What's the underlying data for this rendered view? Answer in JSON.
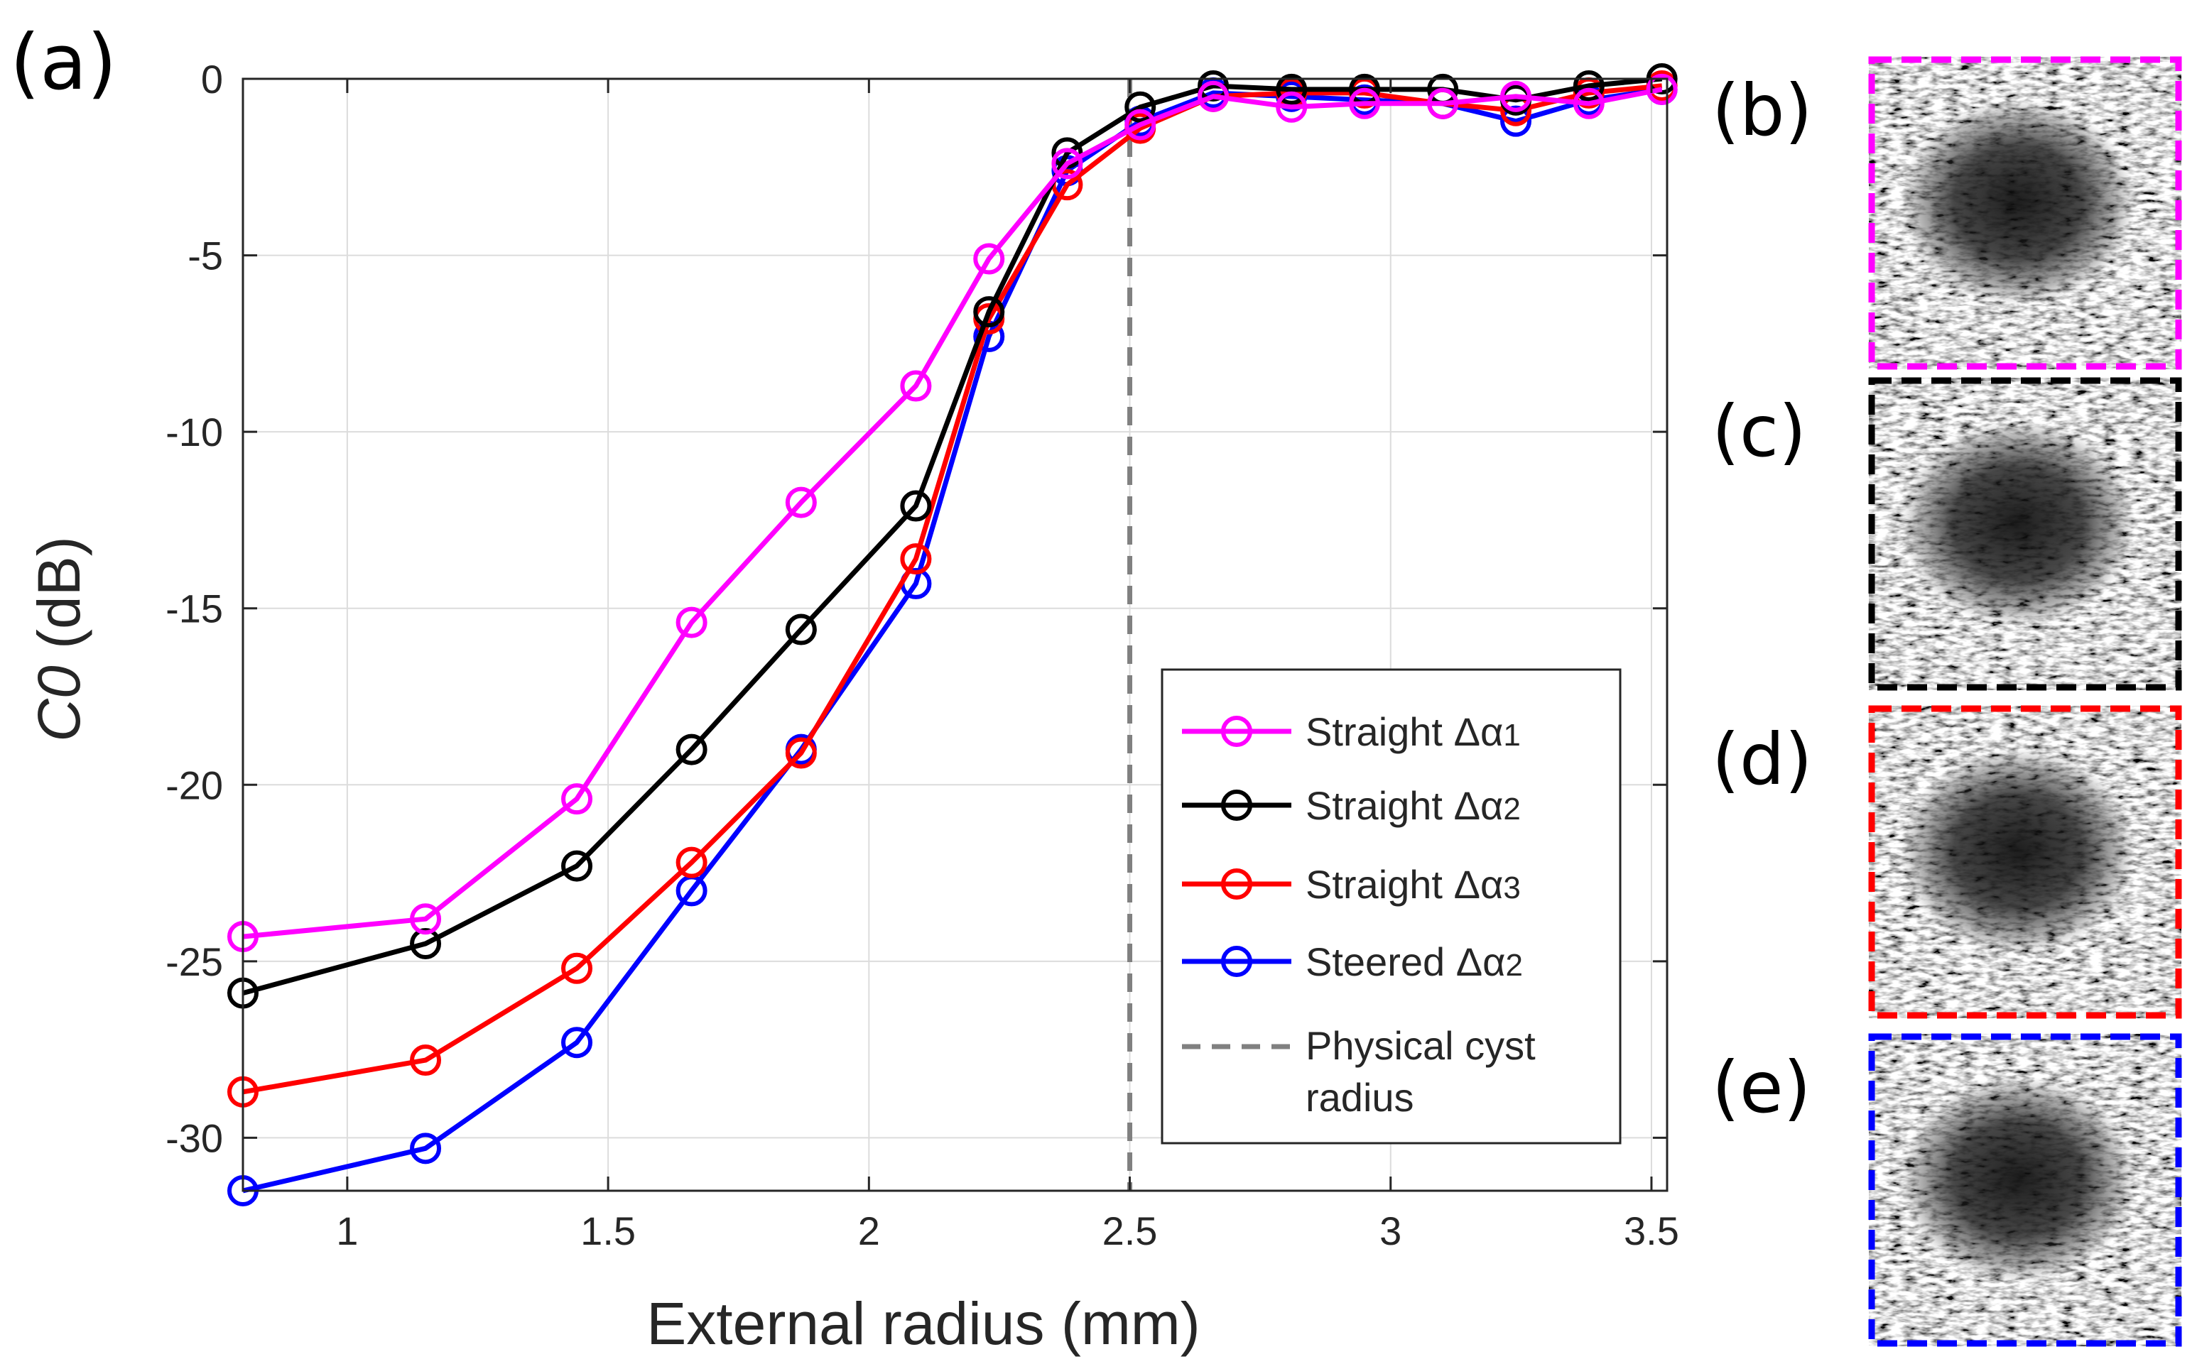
{
  "chart_data": {
    "type": "line",
    "panel_label": "(a)",
    "title": "",
    "xlabel": "External radius (mm)",
    "ylabel": {
      "italic": "C0",
      "rest": " (dB)"
    },
    "xlim": [
      0.8,
      3.53
    ],
    "ylim": [
      -31.5,
      0
    ],
    "grid": true,
    "xticks": [
      1,
      1.5,
      2,
      2.5,
      3,
      3.5
    ],
    "xtick_labels": [
      "1",
      "1.5",
      "2",
      "2.5",
      "3",
      "3.5"
    ],
    "yticks": [
      0,
      -5,
      -10,
      -15,
      -20,
      -25,
      -30
    ],
    "ytick_labels": [
      "0",
      "-5",
      "-10",
      "-15",
      "-20",
      "-25",
      "-30"
    ],
    "x": [
      0.8,
      1.15,
      1.44,
      1.66,
      1.87,
      2.09,
      2.23,
      2.38,
      2.52,
      2.66,
      2.81,
      2.95,
      3.1,
      3.24,
      3.38,
      3.52
    ],
    "series": [
      {
        "name": "Steered",
        "subscript": "2",
        "color": "#0000ff",
        "values": [
          -31.5,
          -30.3,
          -27.3,
          -23.0,
          -19.0,
          -14.3,
          -7.3,
          -2.6,
          -1.2,
          -0.4,
          -0.5,
          -0.6,
          -0.7,
          -1.2,
          -0.6,
          -0.3
        ]
      },
      {
        "name": "Straight",
        "subscript": "3",
        "color": "#ff0000",
        "values": [
          -28.7,
          -27.8,
          -25.2,
          -22.2,
          -19.1,
          -13.6,
          -6.8,
          -3.0,
          -1.4,
          -0.5,
          -0.4,
          -0.4,
          -0.7,
          -0.9,
          -0.4,
          -0.2
        ]
      },
      {
        "name": "Straight",
        "subscript": "2",
        "color": "#000000",
        "values": [
          -25.9,
          -24.5,
          -22.3,
          -19.0,
          -15.6,
          -12.1,
          -6.6,
          -2.1,
          -0.8,
          -0.2,
          -0.3,
          -0.3,
          -0.3,
          -0.6,
          -0.2,
          0.0
        ]
      },
      {
        "name": "Straight",
        "subscript": "1",
        "color": "#ff00ff",
        "values": [
          -24.3,
          -23.8,
          -20.4,
          -15.4,
          -12.0,
          -8.7,
          -5.1,
          -2.4,
          -1.3,
          -0.5,
          -0.8,
          -0.7,
          -0.7,
          -0.5,
          -0.7,
          -0.3
        ]
      }
    ],
    "legend_order": [
      3,
      2,
      1,
      0
    ],
    "legend_position": "lower-right",
    "reference_line": {
      "x": 2.5,
      "label_line1": "Physical cyst",
      "label_line2": "radius",
      "color": "#808080"
    },
    "greek_prefix": "Δα"
  },
  "image_panels": [
    {
      "label": "(b)",
      "border_color": "#ff00ff"
    },
    {
      "label": "(c)",
      "border_color": "#000000"
    },
    {
      "label": "(d)",
      "border_color": "#ff0000"
    },
    {
      "label": "(e)",
      "border_color": "#0000ff"
    }
  ]
}
